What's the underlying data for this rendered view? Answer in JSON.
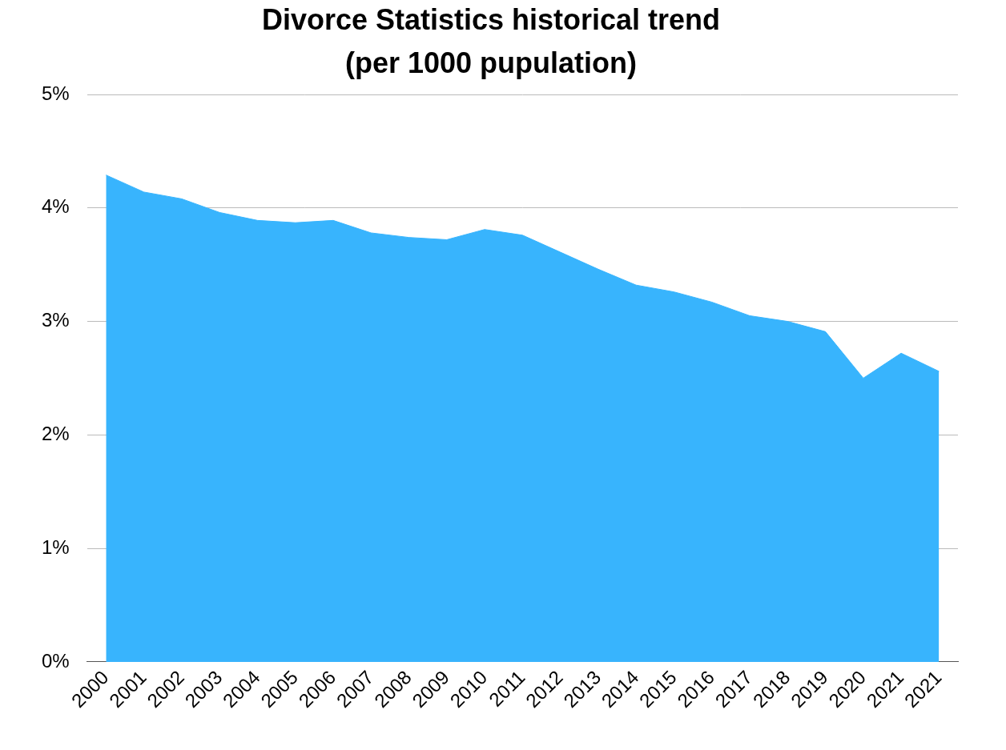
{
  "chart_data": {
    "type": "area",
    "title": [
      "Divorce Statistics historical trend",
      "(per 1000 pupulation)"
    ],
    "categories": [
      "2000",
      "2001",
      "2002",
      "2003",
      "2004",
      "2005",
      "2006",
      "2007",
      "2008",
      "2009",
      "2010",
      "2011",
      "2012",
      "2013",
      "2014",
      "2015",
      "2016",
      "2017",
      "2018",
      "2019",
      "2020",
      "2021",
      "2021"
    ],
    "values": [
      4.29,
      4.14,
      4.08,
      3.96,
      3.89,
      3.87,
      3.89,
      3.78,
      3.74,
      3.72,
      3.81,
      3.76,
      3.61,
      3.46,
      3.32,
      3.26,
      3.17,
      3.05,
      3.0,
      2.91,
      2.5,
      2.72,
      2.56
    ],
    "color": "#38b4fd",
    "ylim": [
      0,
      5
    ],
    "yticks": [
      {
        "value": 0,
        "label": "0%"
      },
      {
        "value": 1,
        "label": "1%"
      },
      {
        "value": 2,
        "label": "2%"
      },
      {
        "value": 3,
        "label": "3%"
      },
      {
        "value": 4,
        "label": "4%"
      },
      {
        "value": 5,
        "label": "5%"
      }
    ],
    "grid": true
  }
}
